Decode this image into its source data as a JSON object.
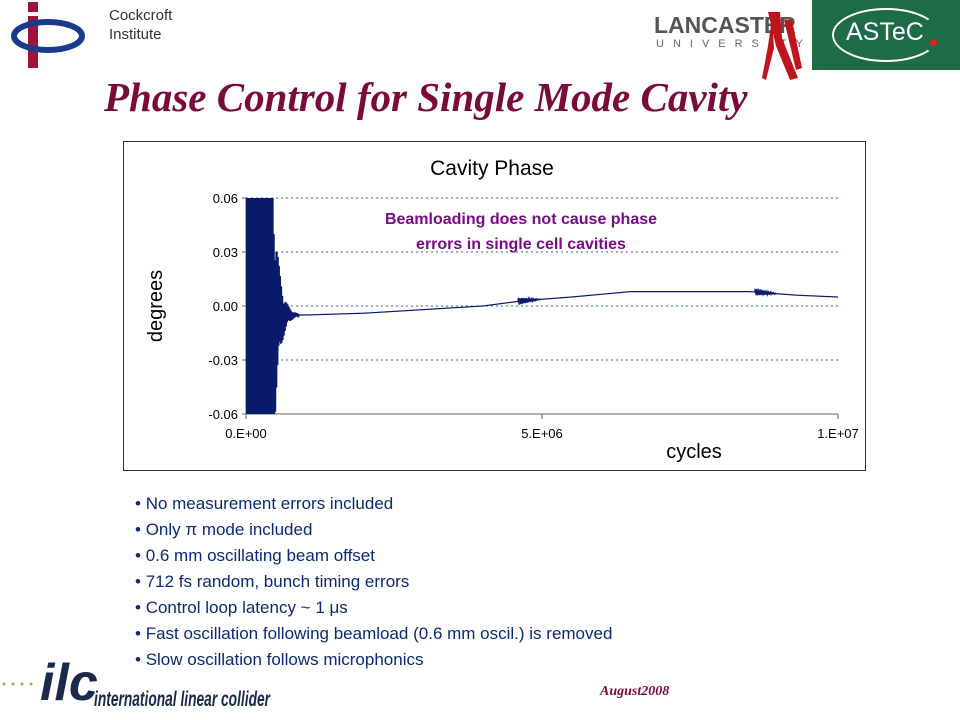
{
  "header": {
    "institute_line1": "Cockcroft",
    "institute_line2": "Institute",
    "lancaster_word": "LANCASTER",
    "lancaster_sub": "UNIVERSITY",
    "astec": "ASTeC"
  },
  "slide": {
    "title": "Phase  Control for Single Mode Cavity",
    "date": "August2008",
    "footer_logo_text": "international linear collider",
    "footer_logo_mark": "ilc"
  },
  "bullets": [
    "No measurement errors included",
    "Only π mode included",
    "0.6 mm oscillating beam offset",
    "712 fs random, bunch timing errors",
    "Control loop latency ~ 1 μs",
    "Fast oscillation following beamload (0.6 mm oscil.) is removed",
    "Slow oscillation follows microphonics"
  ],
  "chart_data": {
    "type": "line",
    "title": "Cavity Phase",
    "xlabel": "cycles",
    "ylabel": "degrees",
    "annotation": "Beamloading does not cause phase errors in single cell cavities",
    "xlim": [
      0,
      10000000
    ],
    "ylim": [
      -0.06,
      0.06
    ],
    "x_ticks": [
      "0.E+00",
      "5.E+06",
      "1.E+07"
    ],
    "y_ticks": [
      "0.06",
      "0.03",
      "0.00",
      "-0.03",
      "-0.06"
    ],
    "y_tick_values": [
      0.06,
      0.03,
      0.0,
      -0.03,
      -0.06
    ],
    "x_tick_values": [
      0,
      5000000,
      10000000
    ],
    "grid": "horizontal dotted",
    "series": [
      {
        "color": "#0a1a6a",
        "x": [
          0,
          200000,
          600000,
          1000000,
          2000000,
          3000000,
          4000000,
          4700000,
          5500000,
          6500000,
          7500000,
          8500000,
          9300000,
          10000000
        ],
        "y": [
          -0.006,
          -0.007,
          -0.005,
          -0.005,
          -0.004,
          -0.002,
          0.0,
          0.003,
          0.005,
          0.008,
          0.008,
          0.008,
          0.006,
          0.005
        ]
      }
    ],
    "oscillation_zones": [
      {
        "x_start": 0,
        "x_end": 900000,
        "kind": "initial-transient"
      },
      {
        "x_start": 4600000,
        "x_end": 5000000,
        "kind": "beamload"
      },
      {
        "x_start": 8600000,
        "x_end": 9000000,
        "kind": "beamload"
      }
    ]
  },
  "colors": {
    "title": "#7a0a3c",
    "bullet_text": "#0a2a78",
    "annotation": "#7a0a8a",
    "astec_bg": "#1e6b48",
    "grid": "#3a5fa0"
  }
}
